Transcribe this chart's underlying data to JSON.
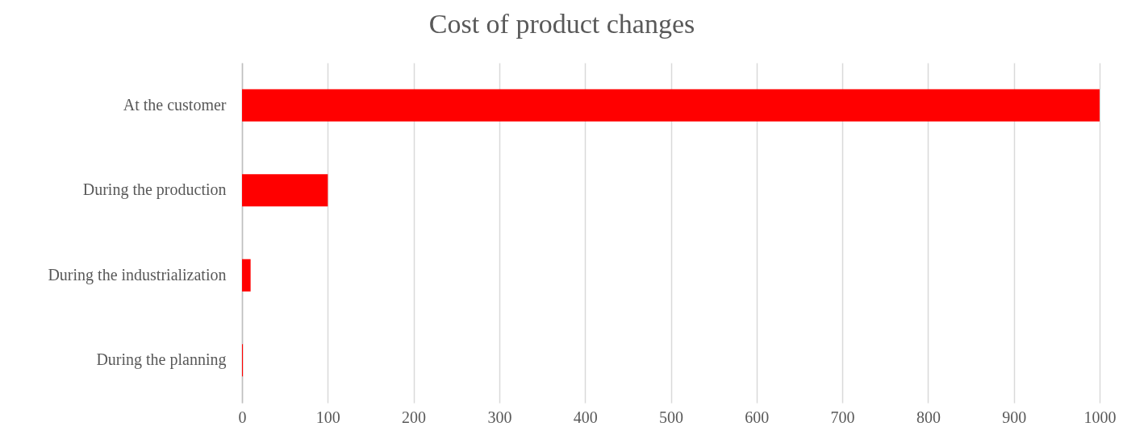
{
  "chart_data": {
    "type": "bar",
    "title": "Cost of product changes",
    "orientation": "horizontal",
    "categories": [
      "At the customer",
      "During the production",
      "During the industrialization",
      "During the planning"
    ],
    "values": [
      1000,
      100,
      10,
      1
    ],
    "color": "#ff0000",
    "xlim": [
      0,
      1000
    ],
    "xticks": [
      0,
      100,
      200,
      300,
      400,
      500,
      600,
      700,
      800,
      900,
      1000
    ],
    "grid": "x"
  }
}
